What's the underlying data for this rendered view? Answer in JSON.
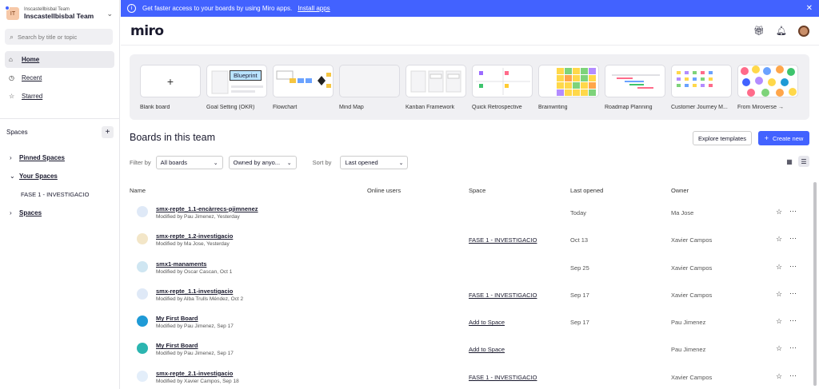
{
  "sidebar": {
    "team_sub": "Inscastellbisbal Team",
    "team_name": "Inscastellbisbal Team",
    "team_initials": "IT",
    "search_placeholder": "Search by title or topic",
    "nav": [
      {
        "label": "Home",
        "icon": "home-icon"
      },
      {
        "label": "Recent",
        "icon": "clock-icon"
      },
      {
        "label": "Starred",
        "icon": "star-icon"
      }
    ],
    "spaces_label": "Spaces",
    "spaces": [
      {
        "label": "Pinned Spaces",
        "expanded": false
      },
      {
        "label": "Your Spaces",
        "expanded": true
      },
      {
        "label": "FASE 1 - INVESTIGACIO",
        "child": true
      },
      {
        "label": "Spaces",
        "expanded": false
      }
    ]
  },
  "banner": {
    "text": "Get faster access to your boards by using Miro apps.",
    "link": "Install apps"
  },
  "header": {
    "logo": "miro"
  },
  "templates": [
    {
      "label": "Blank board"
    },
    {
      "label": "Goal Setting (OKR)",
      "tag": "Blueprint"
    },
    {
      "label": "Flowchart"
    },
    {
      "label": "Mind Map"
    },
    {
      "label": "Kanban Framework"
    },
    {
      "label": "Quick Retrospective"
    },
    {
      "label": "Brainwriting"
    },
    {
      "label": "Roadmap Planning"
    },
    {
      "label": "Customer Journey M..."
    },
    {
      "label": "From Miroverse →"
    }
  ],
  "boards": {
    "title": "Boards in this team",
    "explore_label": "Explore templates",
    "create_label": "Create new",
    "filter_by": "Filter by",
    "filter_value": "All boards",
    "owner_value": "Owned by anyo...",
    "sort_by": "Sort by",
    "sort_value": "Last opened",
    "columns": {
      "name": "Name",
      "online": "Online users",
      "space": "Space",
      "opened": "Last opened",
      "owner": "Owner"
    },
    "rows": [
      {
        "name": "smx-repte_1.1-encàrrecs-pjimnenez",
        "modified": "Modified by Pau Jimenez, Yesterday",
        "space": "",
        "opened": "Today",
        "owner": "Ma Jose",
        "thumb": "#dfe9f7"
      },
      {
        "name": "smx-repte_1.2-investigacio",
        "modified": "Modified by Ma Jose, Yesterday",
        "space": "FASE 1 - INVESTIGACIO",
        "opened": "Oct 13",
        "owner": "Xavier Campos",
        "thumb": "#f3e6c8"
      },
      {
        "name": "smx1-manaments",
        "modified": "Modified by Oscar Cascan, Oct 1",
        "space": "",
        "opened": "Sep 25",
        "owner": "Xavier Campos",
        "thumb": "#cfe6f2"
      },
      {
        "name": "smx-repte_1.1-investigacio",
        "modified": "Modified by Alba Trulls Méndez, Oct 2",
        "space": "FASE 1 - INVESTIGACIO",
        "opened": "Sep 17",
        "owner": "Xavier Campos",
        "thumb": "#dfe9f7"
      },
      {
        "name": "My First Board",
        "modified": "Modified by Pau Jimenez, Sep 17",
        "space": "Add to Space",
        "opened": "Sep 17",
        "owner": "Pau Jimenez",
        "thumb": "#1f9ad6"
      },
      {
        "name": "My First Board",
        "modified": "Modified by Pau Jimenez, Sep 17",
        "space": "Add to Space",
        "opened": "",
        "owner": "Pau Jimenez",
        "thumb": "#2bb5b0"
      },
      {
        "name": "smx-repte_2.1-investigacio",
        "modified": "Modified by Xavier Campos, Sep 18",
        "space": "FASE 1 - INVESTIGACIO",
        "opened": "",
        "owner": "Xavier Campos",
        "thumb": "#e3eefa"
      }
    ]
  },
  "colors": {
    "accent": "#4262ff"
  }
}
